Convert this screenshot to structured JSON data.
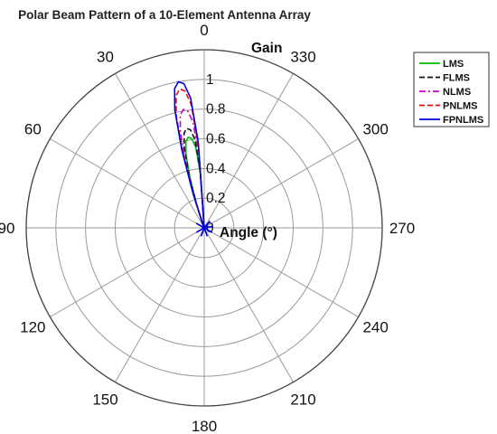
{
  "chart_data": {
    "type": "polar-line",
    "title": "Polar Beam Pattern of a 10-Element Antenna Array",
    "radial_label": "Gain",
    "angular_label": "Angle (°)",
    "r_range": [
      0,
      1.2
    ],
    "r_ticks": [
      "0",
      "0.2",
      "0.4",
      "0.6",
      "0.8",
      "1"
    ],
    "r_tick_values": [
      0,
      0.2,
      0.4,
      0.6,
      0.8,
      1.0
    ],
    "theta_ticks": [
      "0",
      "30",
      "60",
      "90",
      "120",
      "150",
      "180",
      "210",
      "240",
      "270",
      "300",
      "330"
    ],
    "theta_tick_values": [
      0,
      30,
      60,
      90,
      120,
      150,
      180,
      210,
      240,
      270,
      300,
      330
    ],
    "theta_zero": "top",
    "theta_direction": "counterclockwise",
    "grid": true,
    "legend_position": "top-right",
    "beam": {
      "angles": [
        4,
        6,
        8,
        10,
        12,
        14,
        16,
        18,
        20
      ],
      "base_shape": [
        0.58,
        0.88,
        0.98,
        1.0,
        0.96,
        0.82,
        0.55,
        0.25,
        0.05
      ]
    },
    "series": [
      {
        "name": "LMS",
        "peak": 0.62,
        "peak_angle": 12,
        "color": "#00bb00",
        "dash": "solid"
      },
      {
        "name": "FLMS",
        "peak": 0.68,
        "peak_angle": 12,
        "color": "#111111",
        "dash": "dashed"
      },
      {
        "name": "NLMS",
        "peak": 0.81,
        "peak_angle": 12,
        "color": "#cc00cc",
        "dash": "dashdot"
      },
      {
        "name": "PNLMS",
        "peak": 0.95,
        "peak_angle": 12,
        "color": "#dd1111",
        "dash": "dashed"
      },
      {
        "name": "FPNLMS",
        "peak": 1.0,
        "peak_angle": 12,
        "color": "#0000dd",
        "dash": "solid"
      }
    ]
  }
}
